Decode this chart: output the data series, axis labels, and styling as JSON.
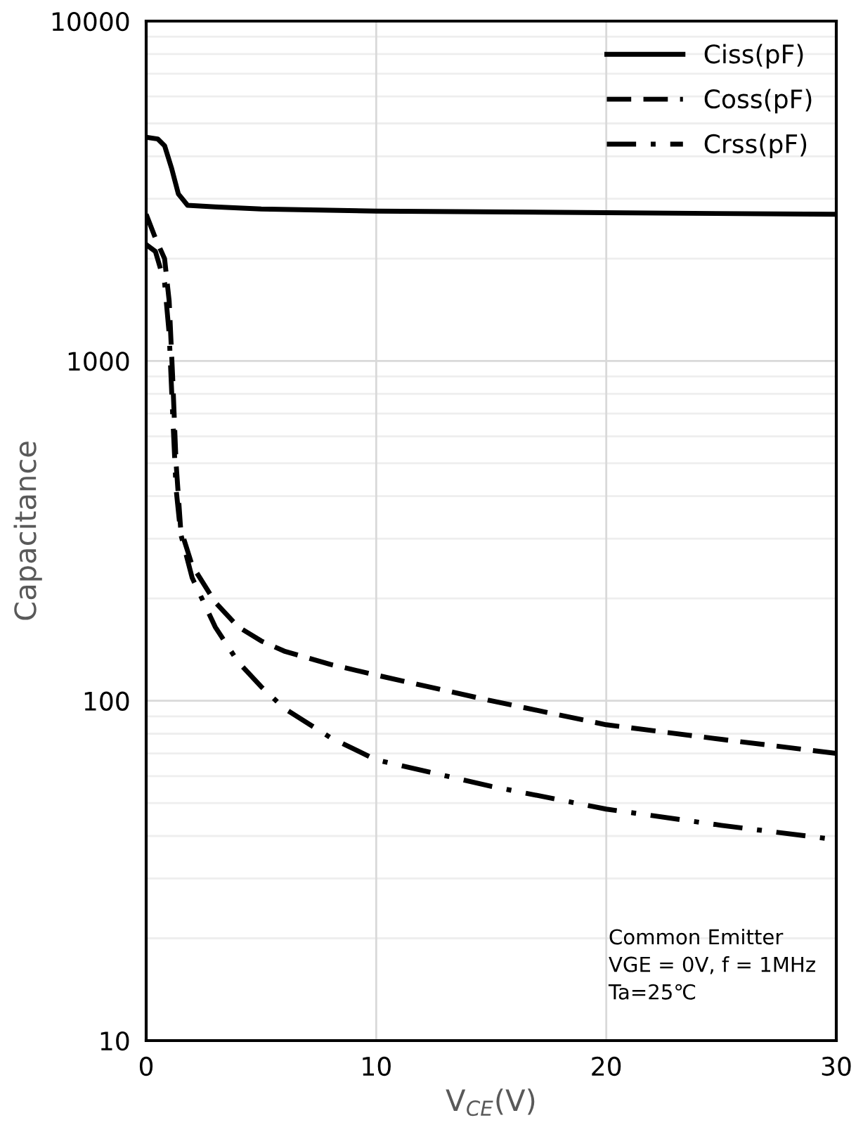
{
  "chart_data": {
    "type": "line",
    "xlabel": "V$_{CE}$(V)",
    "ylabel": "Capacitance",
    "log": "y",
    "xlim": [
      0,
      30
    ],
    "xticks": [
      0,
      10,
      20,
      30
    ],
    "ylim": [
      10,
      10000
    ],
    "yticks": [
      10,
      100,
      1000,
      10000
    ],
    "grid": true,
    "legend": "top right",
    "series": [
      {
        "name": "Ciss(pF)",
        "color": "#000000",
        "line_style": "solid",
        "x": [
          0,
          0.5,
          0.8,
          1.1,
          1.4,
          1.8,
          3,
          5,
          10,
          20,
          30
        ],
        "values": [
          4550,
          4500,
          4300,
          3700,
          3100,
          2870,
          2840,
          2800,
          2760,
          2730,
          2700
        ]
      },
      {
        "name": "Coss(pF)",
        "color": "#000000",
        "line_style": "dashed",
        "x": [
          0,
          0.4,
          0.8,
          1.0,
          1.15,
          1.3,
          1.5,
          2,
          3,
          4,
          5,
          6,
          8,
          10,
          15,
          20,
          25,
          30
        ],
        "values": [
          2700,
          2300,
          2000,
          1500,
          900,
          500,
          320,
          250,
          195,
          165,
          150,
          140,
          128,
          119,
          100,
          85,
          77,
          70
        ]
      },
      {
        "name": "Crss(pF)",
        "color": "#000000",
        "line_style": "dashdot",
        "x": [
          0,
          0.4,
          0.8,
          1.0,
          1.15,
          1.3,
          1.5,
          2,
          3,
          4,
          5,
          6,
          8,
          10,
          15,
          20,
          25,
          30
        ],
        "values": [
          2200,
          2100,
          1700,
          1200,
          700,
          420,
          310,
          230,
          165,
          130,
          110,
          95,
          78,
          67,
          56,
          48,
          43,
          39
        ]
      }
    ],
    "annotations": [
      "Common Emitter",
      "VGE = 0V, f = 1MHz",
      "Ta=25℃"
    ]
  }
}
